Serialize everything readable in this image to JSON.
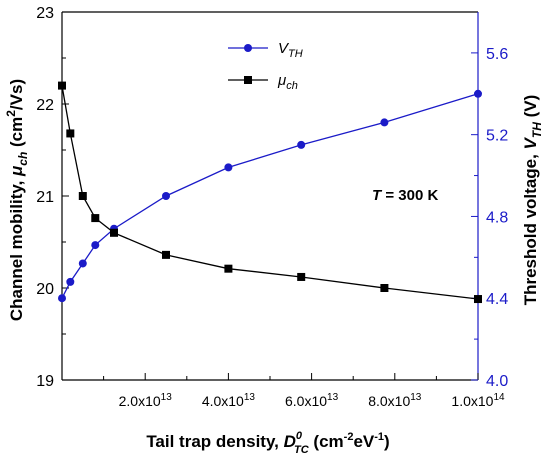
{
  "chart_data": {
    "type": "line",
    "xlabel": {
      "main": "Tail trap density, ",
      "sym": "D",
      "sup": "0",
      "sub": "TC",
      "unit_pre": " (cm",
      "unit_sup1": "-2",
      "unit_mid": "eV",
      "unit_sup2": "-1",
      "unit_post": ")"
    },
    "ylabel_left": {
      "main": "Channel mobility, ",
      "sym": "μ",
      "sub": "ch",
      "unit_pre": " (cm",
      "unit_sup": "2",
      "unit_post": "/Vs)"
    },
    "ylabel_right": {
      "main": "Threshold voltage, ",
      "sym": "V",
      "sub": "TH",
      "unit": " (V)"
    },
    "xlim": [
      0,
      100000000000000.0
    ],
    "ylim_left": [
      19,
      23
    ],
    "ylim_right": [
      4.0,
      5.8
    ],
    "x_ticks": [
      20000000000000.0,
      40000000000000.0,
      60000000000000.0,
      80000000000000.0,
      100000000000000.0
    ],
    "x_tick_labels": [
      {
        "mant": "2.0x10",
        "exp": "13"
      },
      {
        "mant": "4.0x10",
        "exp": "13"
      },
      {
        "mant": "6.0x10",
        "exp": "13"
      },
      {
        "mant": "8.0x10",
        "exp": "13"
      },
      {
        "mant": "1.0x10",
        "exp": "14"
      }
    ],
    "y_left_ticks": [
      "19",
      "20",
      "21",
      "22",
      "23"
    ],
    "y_right_ticks": [
      "4.0",
      "4.4",
      "4.8",
      "5.2",
      "5.6"
    ],
    "annotation": {
      "sym": "T",
      "text": " = 300 K"
    },
    "legend_position": "top-center",
    "series": [
      {
        "name_sym": "V",
        "name_sub": "TH",
        "axis": "right",
        "color": "#1b1bc8",
        "marker": "circle",
        "x": [
          0,
          2000000000000.0,
          5000000000000.0,
          8000000000000.0,
          12500000000000.0,
          25000000000000.0,
          40000000000000.0,
          57500000000000.0,
          77500000000000.0,
          100000000000000.0
        ],
        "y": [
          4.4,
          4.48,
          4.57,
          4.66,
          4.74,
          4.9,
          5.04,
          5.15,
          5.26,
          5.4
        ]
      },
      {
        "name_sym": "μ",
        "name_sub": "ch",
        "axis": "left",
        "color": "#000000",
        "marker": "square",
        "x": [
          0,
          2000000000000.0,
          5000000000000.0,
          8000000000000.0,
          12500000000000.0,
          25000000000000.0,
          40000000000000.0,
          57500000000000.0,
          77500000000000.0,
          100000000000000.0
        ],
        "y": [
          22.2,
          21.68,
          21.0,
          20.76,
          20.6,
          20.36,
          20.21,
          20.12,
          20.0,
          19.88
        ]
      }
    ]
  }
}
